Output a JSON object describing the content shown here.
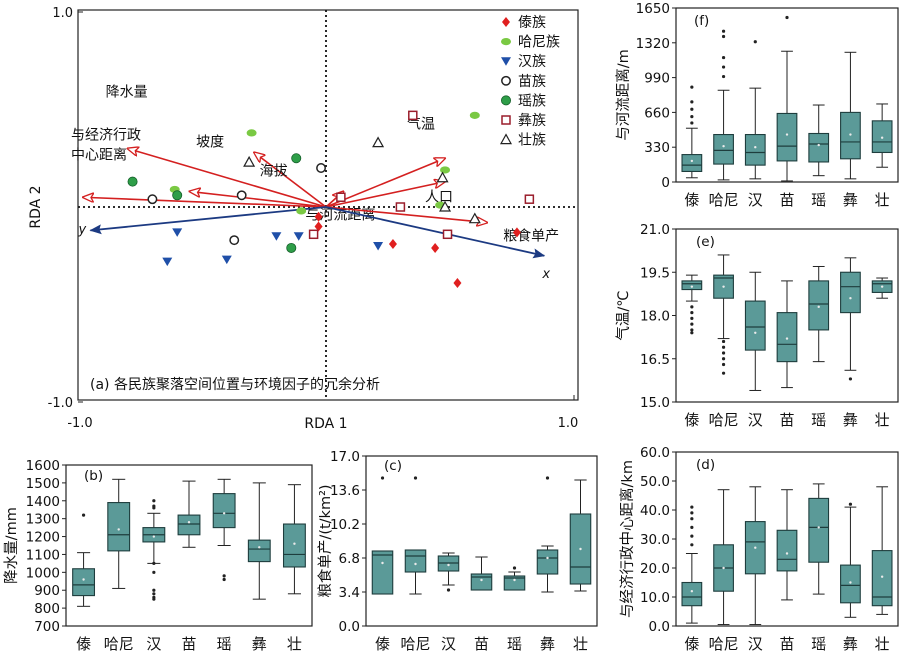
{
  "chart_data": [
    {
      "id": "a",
      "type": "scatter",
      "title": "(a) 各民族聚落空间位置与环境因子的冗余分析",
      "xlabel": "RDA 1",
      "ylabel": "RDA 2",
      "xlim": [
        -1.0,
        1.0
      ],
      "ylim": [
        -1.0,
        1.0
      ],
      "xticks": [
        "-1.0",
        "1.0"
      ],
      "yticks": [
        "1.0",
        "-1.0"
      ],
      "legend_position": "top-right",
      "vectors": [
        {
          "name": "降水量",
          "x": -0.8,
          "y": 0.3
        },
        {
          "name": "坡度",
          "x": -0.29,
          "y": 0.28
        },
        {
          "name": "气温",
          "x": 0.48,
          "y": 0.25
        },
        {
          "name": "与经济行政中心距离",
          "x": -0.98,
          "y": 0.05
        },
        {
          "name": "海拔",
          "x": -0.55,
          "y": 0.08
        },
        {
          "name": "与河流距离",
          "x": 0.07,
          "y": 0.08
        },
        {
          "name": "人口",
          "x": 0.48,
          "y": 0.13
        },
        {
          "name": "粮食单产",
          "x": 0.65,
          "y": -0.08
        }
      ],
      "axes_arrows": [
        {
          "name": "y",
          "x": -0.95,
          "y": -0.12
        },
        {
          "name": "x",
          "x": 0.88,
          "y": -0.25
        }
      ],
      "series": [
        {
          "name": "傣族",
          "marker": "diamond",
          "color": "#e01f1f",
          "points": [
            [
              -0.03,
              -0.1
            ],
            [
              0.27,
              -0.19
            ],
            [
              0.44,
              -0.21
            ],
            [
              0.77,
              -0.13
            ],
            [
              0.53,
              -0.39
            ],
            [
              -0.03,
              -0.05
            ]
          ]
        },
        {
          "name": "哈尼族",
          "marker": "ellipse",
          "color": "#7ac943",
          "points": [
            [
              0.6,
              0.47
            ],
            [
              -0.3,
              0.38
            ],
            [
              0.48,
              0.19
            ],
            [
              0.46,
              0.01
            ],
            [
              -0.61,
              0.09
            ],
            [
              -0.1,
              -0.02
            ]
          ]
        },
        {
          "name": "汉族",
          "marker": "triangle-down",
          "color": "#1f4fa8",
          "points": [
            [
              -0.6,
              -0.13
            ],
            [
              -0.64,
              -0.28
            ],
            [
              -0.4,
              -0.27
            ],
            [
              -0.2,
              -0.15
            ],
            [
              -0.11,
              -0.15
            ],
            [
              0.21,
              -0.2
            ]
          ]
        },
        {
          "name": "苗族",
          "marker": "circle",
          "color": "#222222",
          "points": [
            [
              -0.02,
              0.2
            ],
            [
              -0.34,
              0.06
            ],
            [
              -0.7,
              0.04
            ],
            [
              -0.37,
              -0.17
            ]
          ]
        },
        {
          "name": "瑶族",
          "marker": "circle-filled",
          "color": "#2e9e48",
          "points": [
            [
              -0.12,
              0.25
            ],
            [
              -0.78,
              0.13
            ],
            [
              -0.6,
              0.06
            ],
            [
              -0.14,
              -0.21
            ]
          ]
        },
        {
          "name": "彝族",
          "marker": "square",
          "color": "#9a1d2b",
          "points": [
            [
              0.35,
              0.47
            ],
            [
              0.06,
              0.05
            ],
            [
              0.3,
              0.0
            ],
            [
              0.82,
              0.04
            ],
            [
              0.49,
              -0.14
            ],
            [
              -0.05,
              -0.14
            ]
          ]
        },
        {
          "name": "壮族",
          "marker": "triangle",
          "color": "#222222",
          "points": [
            [
              0.21,
              0.33
            ],
            [
              -0.31,
              0.23
            ],
            [
              0.47,
              0.15
            ],
            [
              0.48,
              0.0
            ],
            [
              0.6,
              -0.06
            ]
          ]
        }
      ]
    },
    {
      "id": "b",
      "type": "box",
      "label": "(b)",
      "ylabel": "降水量/mm",
      "ylim": [
        700,
        1600
      ],
      "yticks": [
        700,
        800,
        900,
        1000,
        1100,
        1200,
        1300,
        1400,
        1500,
        1600
      ],
      "categories": [
        "傣",
        "哈尼",
        "汉",
        "苗",
        "瑶",
        "彝",
        "壮"
      ],
      "boxes": [
        {
          "min": 810,
          "q1": 870,
          "median": 930,
          "q3": 1020,
          "max": 1110,
          "mean": 960,
          "outliers": [
            1320
          ]
        },
        {
          "min": 910,
          "q1": 1120,
          "median": 1210,
          "q3": 1390,
          "max": 1520,
          "mean": 1240,
          "outliers": []
        },
        {
          "min": 1050,
          "q1": 1170,
          "median": 1210,
          "q3": 1250,
          "max": 1330,
          "mean": 1200,
          "outliers": [
            1370,
            1360,
            1400,
            1050,
            1000,
            900,
            880,
            860,
            850
          ]
        },
        {
          "min": 1140,
          "q1": 1210,
          "median": 1270,
          "q3": 1320,
          "max": 1510,
          "mean": 1280,
          "outliers": []
        },
        {
          "min": 1150,
          "q1": 1250,
          "median": 1330,
          "q3": 1440,
          "max": 1520,
          "mean": 1330,
          "outliers": [
            980,
            960
          ]
        },
        {
          "min": 850,
          "q1": 1060,
          "median": 1130,
          "q3": 1180,
          "max": 1500,
          "mean": 1140,
          "outliers": []
        },
        {
          "min": 880,
          "q1": 1030,
          "median": 1100,
          "q3": 1270,
          "max": 1490,
          "mean": 1160,
          "outliers": []
        }
      ]
    },
    {
      "id": "c",
      "type": "box",
      "label": "(c)",
      "ylabel": "粮食单产/(t/km²)",
      "ylim": [
        0,
        17.0
      ],
      "yticks": [
        0,
        3.4,
        6.8,
        10.2,
        13.6,
        17.0
      ],
      "categories": [
        "傣",
        "哈尼",
        "汉",
        "苗",
        "瑶",
        "彝",
        "壮"
      ],
      "boxes": [
        {
          "min": 3.2,
          "q1": 3.2,
          "median": 7.1,
          "q3": 7.5,
          "max": 7.5,
          "mean": 6.3,
          "outliers": [
            14.8
          ]
        },
        {
          "min": 3.2,
          "q1": 5.4,
          "median": 7.0,
          "q3": 7.6,
          "max": 7.6,
          "mean": 6.2,
          "outliers": [
            14.8
          ]
        },
        {
          "min": 4.1,
          "q1": 5.5,
          "median": 6.3,
          "q3": 7.0,
          "max": 7.3,
          "mean": 6.1,
          "outliers": [
            3.6
          ]
        },
        {
          "min": 3.6,
          "q1": 3.6,
          "median": 4.9,
          "q3": 5.2,
          "max": 6.9,
          "mean": 4.6,
          "outliers": []
        },
        {
          "min": 3.6,
          "q1": 3.6,
          "median": 4.8,
          "q3": 5.0,
          "max": 5.4,
          "mean": 4.6,
          "outliers": [
            5.8
          ]
        },
        {
          "min": 3.4,
          "q1": 5.2,
          "median": 6.8,
          "q3": 7.6,
          "max": 8.0,
          "mean": 6.8,
          "outliers": [
            14.8
          ]
        },
        {
          "min": 3.5,
          "q1": 4.2,
          "median": 5.9,
          "q3": 11.2,
          "max": 14.6,
          "mean": 7.7,
          "outliers": []
        }
      ]
    },
    {
      "id": "d",
      "type": "box",
      "label": "(d)",
      "ylabel": "与经济行政中心距离/km",
      "ylim": [
        0,
        60.0
      ],
      "yticks": [
        0,
        10.0,
        20.0,
        30.0,
        40.0,
        50.0,
        60.0
      ],
      "categories": [
        "傣",
        "哈尼",
        "汉",
        "苗",
        "瑶",
        "彝",
        "壮"
      ],
      "boxes": [
        {
          "min": 1,
          "q1": 7,
          "median": 10,
          "q3": 15,
          "max": 25,
          "mean": 12,
          "outliers": [
            28,
            31,
            34,
            37,
            39,
            41
          ]
        },
        {
          "min": 0.5,
          "q1": 12,
          "median": 20,
          "q3": 28,
          "max": 47,
          "mean": 20,
          "outliers": []
        },
        {
          "min": 0.5,
          "q1": 18,
          "median": 29,
          "q3": 36,
          "max": 48,
          "mean": 27,
          "outliers": []
        },
        {
          "min": 9,
          "q1": 19,
          "median": 23,
          "q3": 33,
          "max": 47,
          "mean": 25,
          "outliers": []
        },
        {
          "min": 11,
          "q1": 22,
          "median": 34,
          "q3": 44,
          "max": 49,
          "mean": 34,
          "outliers": []
        },
        {
          "min": 3,
          "q1": 8,
          "median": 14,
          "q3": 21,
          "max": 41,
          "mean": 15,
          "outliers": [
            42
          ]
        },
        {
          "min": 4,
          "q1": 7,
          "median": 10,
          "q3": 26,
          "max": 48,
          "mean": 17,
          "outliers": []
        }
      ]
    },
    {
      "id": "e",
      "type": "box",
      "label": "(e)",
      "ylabel": "气温/℃",
      "ylim": [
        15.0,
        21.0
      ],
      "yticks": [
        15.0,
        16.5,
        18.0,
        19.5,
        21.0
      ],
      "categories": [
        "傣",
        "哈尼",
        "汉",
        "苗",
        "瑶",
        "彝",
        "壮"
      ],
      "boxes": [
        {
          "min": 18.5,
          "q1": 18.9,
          "median": 19.1,
          "q3": 19.2,
          "max": 19.4,
          "mean": 19.0,
          "outliers": [
            18.3,
            18.1,
            17.9,
            17.7,
            17.5,
            17.4
          ]
        },
        {
          "min": 17.2,
          "q1": 18.6,
          "median": 19.3,
          "q3": 19.4,
          "max": 20.1,
          "mean": 19.0,
          "outliers": [
            17.1,
            16.9,
            16.7,
            16.5,
            16.3,
            16.0
          ]
        },
        {
          "min": 15.4,
          "q1": 16.8,
          "median": 17.6,
          "q3": 18.5,
          "max": 19.5,
          "mean": 17.4,
          "outliers": []
        },
        {
          "min": 15.5,
          "q1": 16.4,
          "median": 17.0,
          "q3": 18.1,
          "max": 19.2,
          "mean": 17.2,
          "outliers": []
        },
        {
          "min": 16.4,
          "q1": 17.5,
          "median": 18.4,
          "q3": 19.2,
          "max": 19.7,
          "mean": 18.3,
          "outliers": []
        },
        {
          "min": 16.1,
          "q1": 18.1,
          "median": 19.0,
          "q3": 19.5,
          "max": 20.0,
          "mean": 18.6,
          "outliers": [
            15.8
          ]
        },
        {
          "min": 18.6,
          "q1": 18.8,
          "median": 19.1,
          "q3": 19.2,
          "max": 19.3,
          "mean": 19.0,
          "outliers": []
        }
      ]
    },
    {
      "id": "f",
      "type": "box",
      "label": "(f)",
      "ylabel": "与河流距离/m",
      "ylim": [
        0,
        1650
      ],
      "yticks": [
        0,
        330,
        660,
        990,
        1320,
        1650
      ],
      "categories": [
        "傣",
        "哈尼",
        "汉",
        "苗",
        "瑶",
        "彝",
        "壮"
      ],
      "boxes": [
        {
          "min": 40,
          "q1": 100,
          "median": 160,
          "q3": 260,
          "max": 510,
          "mean": 200,
          "outliers": [
            560,
            620,
            690,
            760,
            900
          ]
        },
        {
          "min": 20,
          "q1": 170,
          "median": 300,
          "q3": 450,
          "max": 870,
          "mean": 340,
          "outliers": [
            1000,
            1090,
            1180,
            1380,
            1430
          ]
        },
        {
          "min": 30,
          "q1": 160,
          "median": 280,
          "q3": 450,
          "max": 890,
          "mean": 330,
          "outliers": [
            1330
          ]
        },
        {
          "min": 10,
          "q1": 200,
          "median": 340,
          "q3": 650,
          "max": 1240,
          "mean": 450,
          "outliers": [
            1560
          ]
        },
        {
          "min": 60,
          "q1": 190,
          "median": 360,
          "q3": 460,
          "max": 730,
          "mean": 350,
          "outliers": []
        },
        {
          "min": 30,
          "q1": 220,
          "median": 380,
          "q3": 660,
          "max": 1230,
          "mean": 450,
          "outliers": []
        },
        {
          "min": 140,
          "q1": 280,
          "median": 380,
          "q3": 580,
          "max": 740,
          "mean": 420,
          "outliers": []
        }
      ]
    }
  ]
}
